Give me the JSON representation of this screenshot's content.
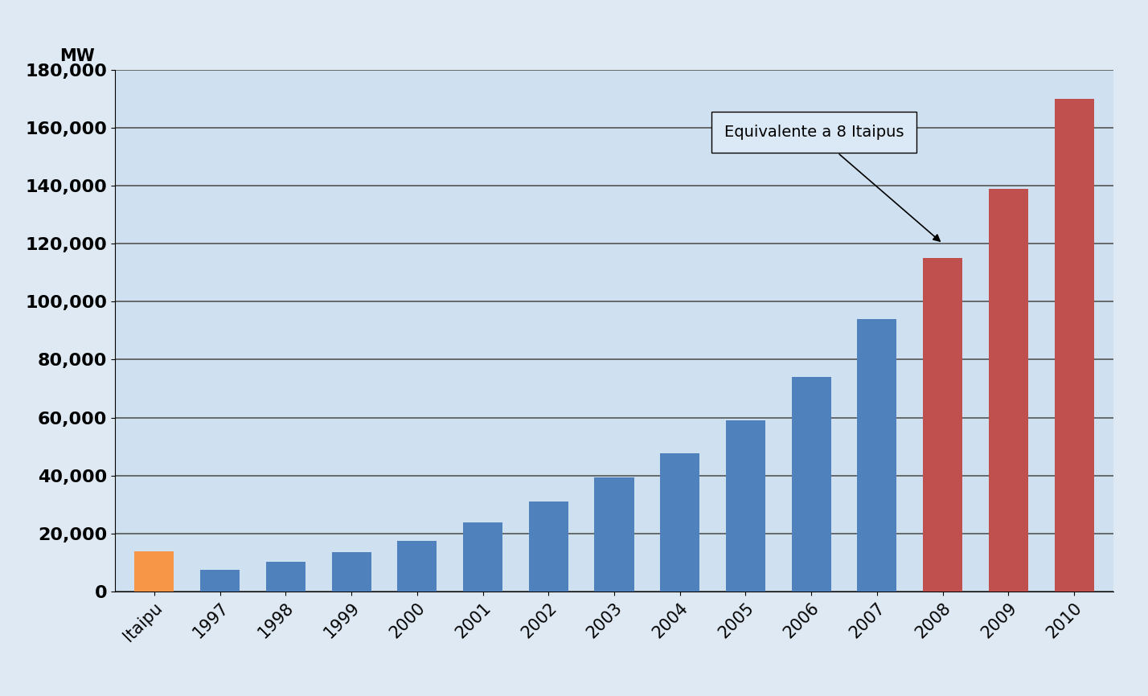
{
  "chart_data": {
    "type": "bar",
    "y_label": "MW",
    "categories": [
      "Itaipu",
      "1997",
      "1998",
      "1999",
      "2000",
      "2001",
      "2002",
      "2003",
      "2004",
      "2005",
      "2006",
      "2007",
      "2008",
      "2009",
      "2010"
    ],
    "values": [
      14000,
      7600,
      10200,
      13600,
      17400,
      23900,
      31100,
      39400,
      47600,
      59100,
      74000,
      93900,
      115000,
      139000,
      170000
    ],
    "colors": [
      "#f79646",
      "#4f81bd",
      "#4f81bd",
      "#4f81bd",
      "#4f81bd",
      "#4f81bd",
      "#4f81bd",
      "#4f81bd",
      "#4f81bd",
      "#4f81bd",
      "#4f81bd",
      "#4f81bd",
      "#c0504d",
      "#c0504d",
      "#c0504d"
    ],
    "ylim": [
      0,
      180000
    ],
    "yticks": [
      0,
      {
        "value": 20000,
        "label": "20,000"
      },
      {
        "value": 40000,
        "label": "40,000"
      },
      {
        "value": 60000,
        "label": "60,000"
      },
      {
        "value": 80000,
        "label": "80,000"
      },
      {
        "value": 100000,
        "label": "100,000"
      },
      {
        "value": 120000,
        "label": "120,000"
      },
      {
        "value": 140000,
        "label": "140,000"
      },
      {
        "value": 160000,
        "label": "160,000"
      },
      {
        "value": 180000,
        "label": "180,000"
      }
    ],
    "grid": true,
    "annotations": [
      {
        "text": "Equivalente a 8 Itaipus",
        "category": "2008"
      }
    ]
  }
}
